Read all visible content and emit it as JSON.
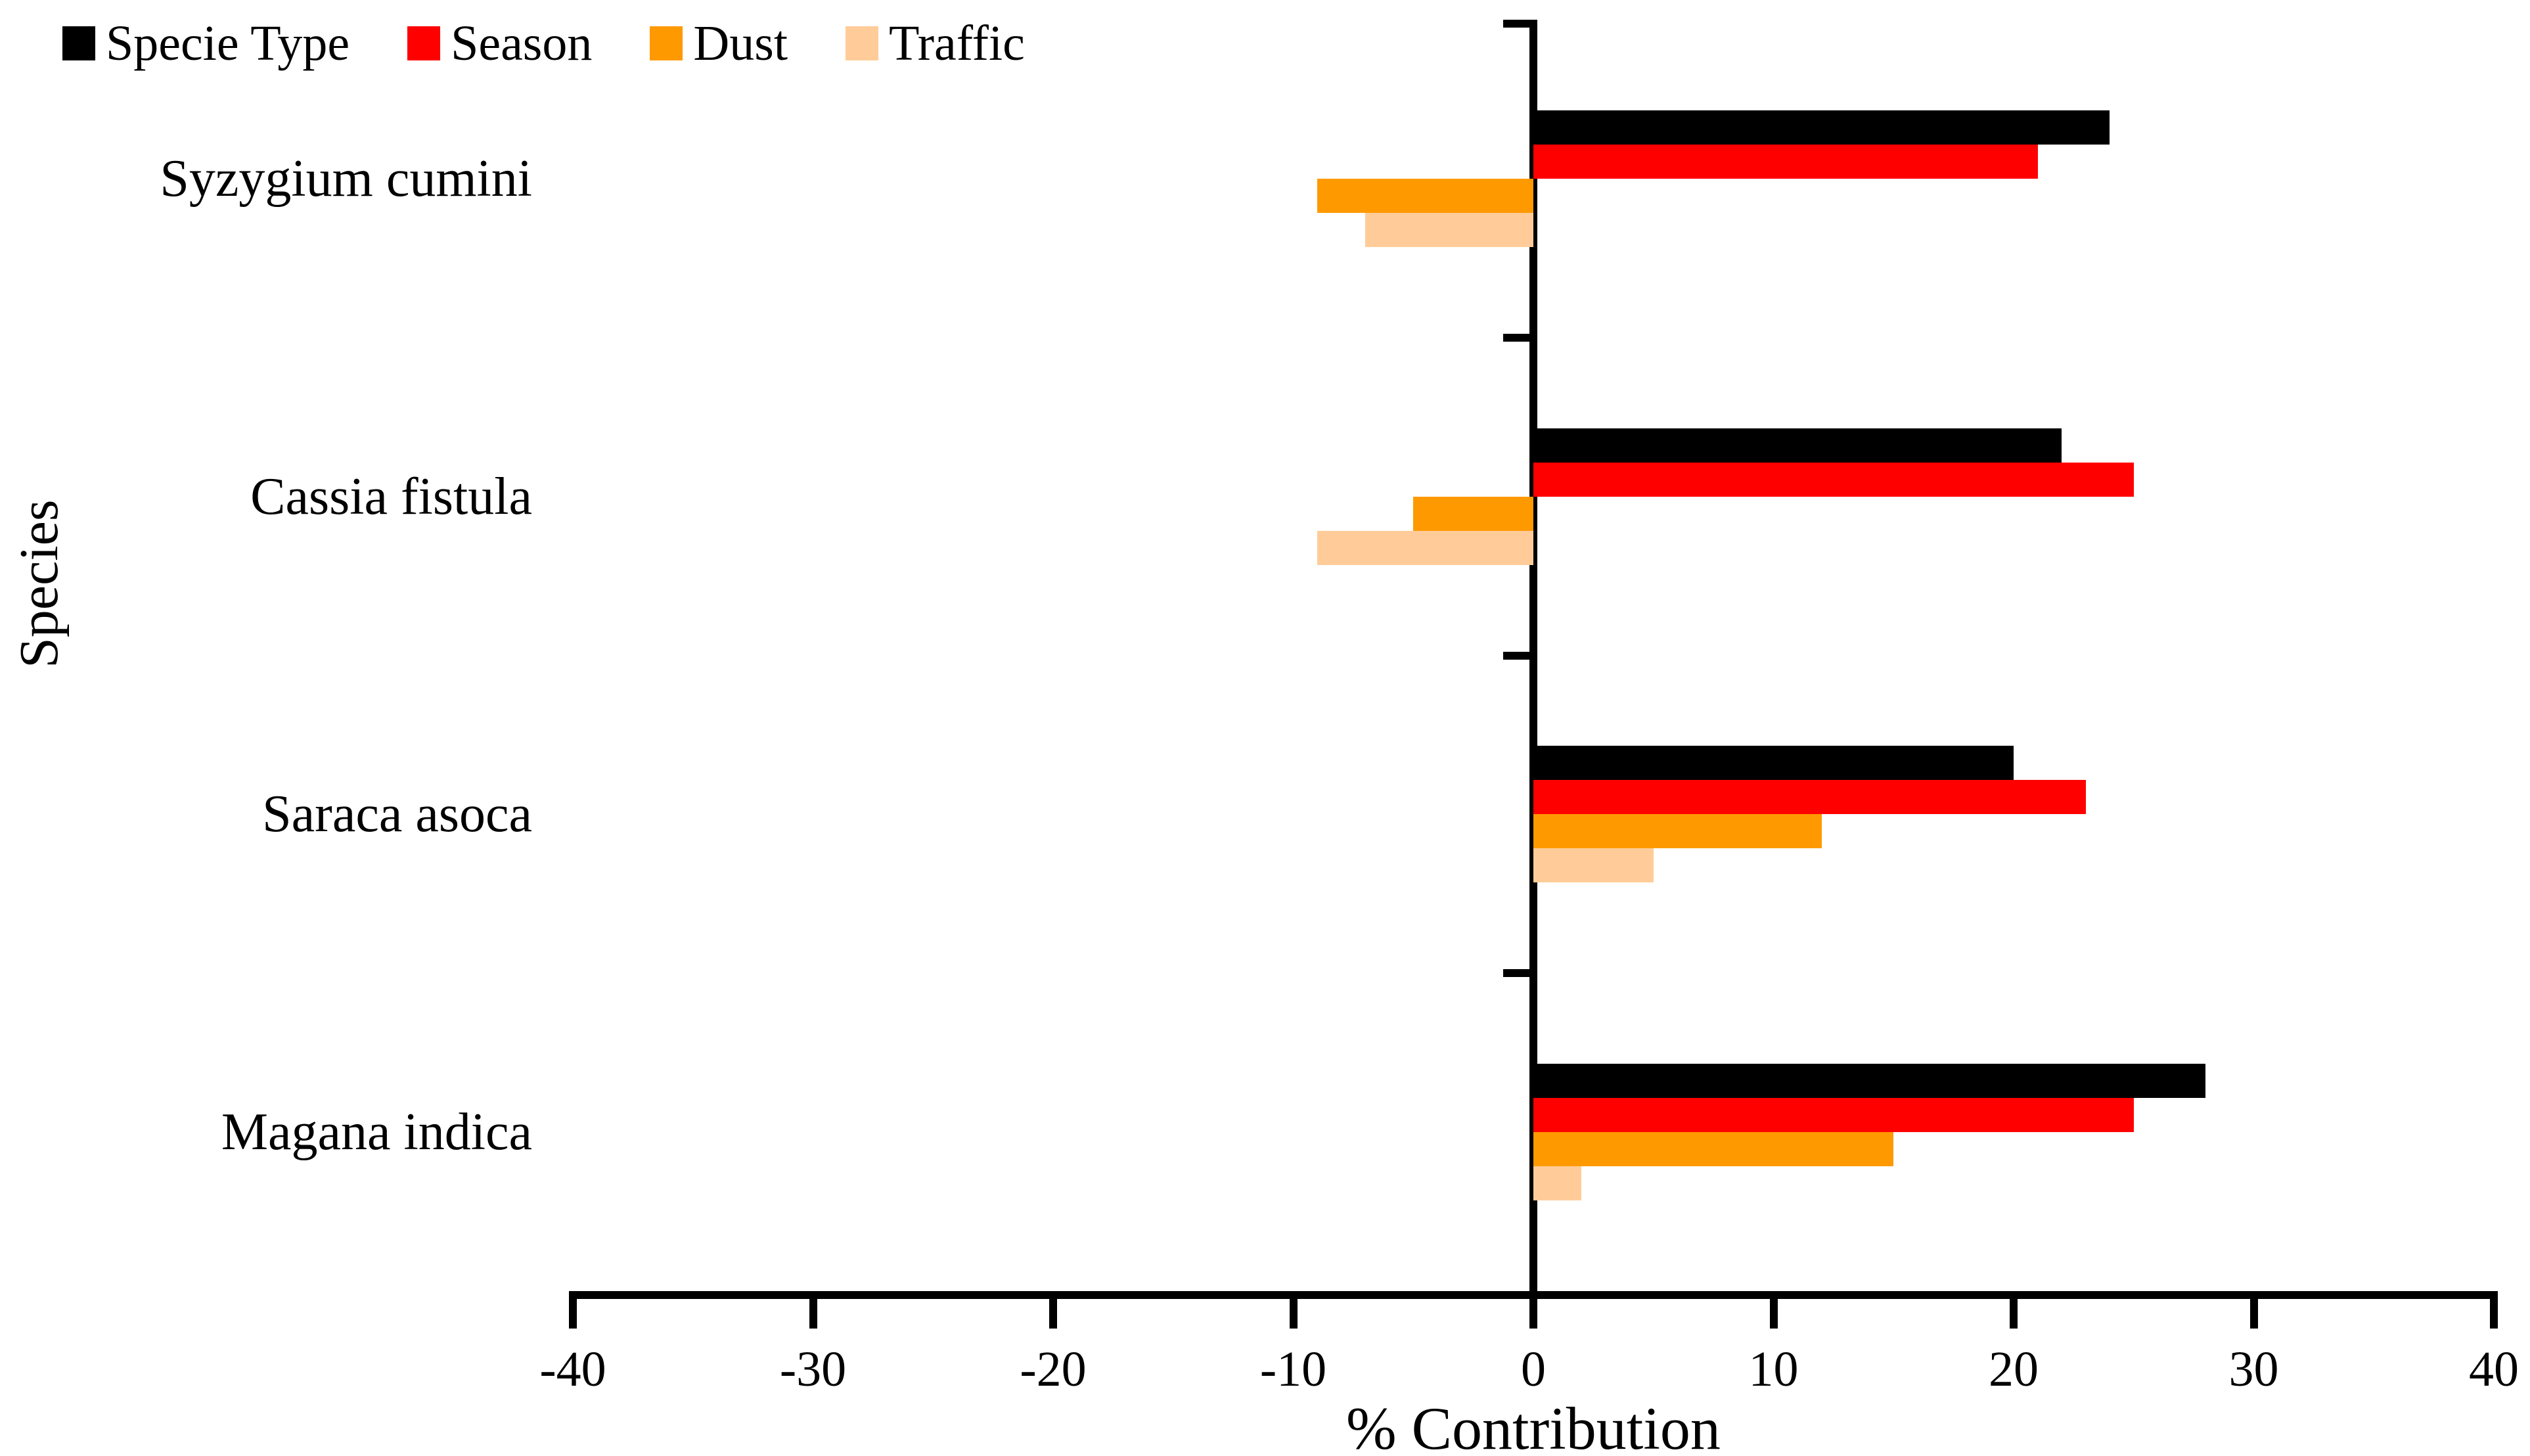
{
  "chart_data": {
    "type": "bar",
    "orientation": "horizontal",
    "title": "",
    "xlabel": "% Contribution",
    "ylabel": "Species",
    "xlim": [
      -40,
      40
    ],
    "xticks": [
      -40,
      -30,
      -20,
      -10,
      0,
      10,
      20,
      30,
      40
    ],
    "grid": false,
    "legend_position": "top-left",
    "categories": [
      "Syzygium cumini",
      "Cassia fistula",
      "Saraca asoca",
      "Magana indica"
    ],
    "series": [
      {
        "name": "Specie Type",
        "color": "#000000",
        "values": [
          24,
          22,
          20,
          28
        ]
      },
      {
        "name": "Season",
        "color": "#FF0000",
        "values": [
          21,
          25,
          23,
          25
        ]
      },
      {
        "name": "Dust",
        "color": "#FF9900",
        "values": [
          -9,
          -5,
          12,
          15
        ]
      },
      {
        "name": "Traffic",
        "color": "#FFCC99",
        "values": [
          -7,
          -9,
          5,
          2
        ]
      }
    ]
  }
}
